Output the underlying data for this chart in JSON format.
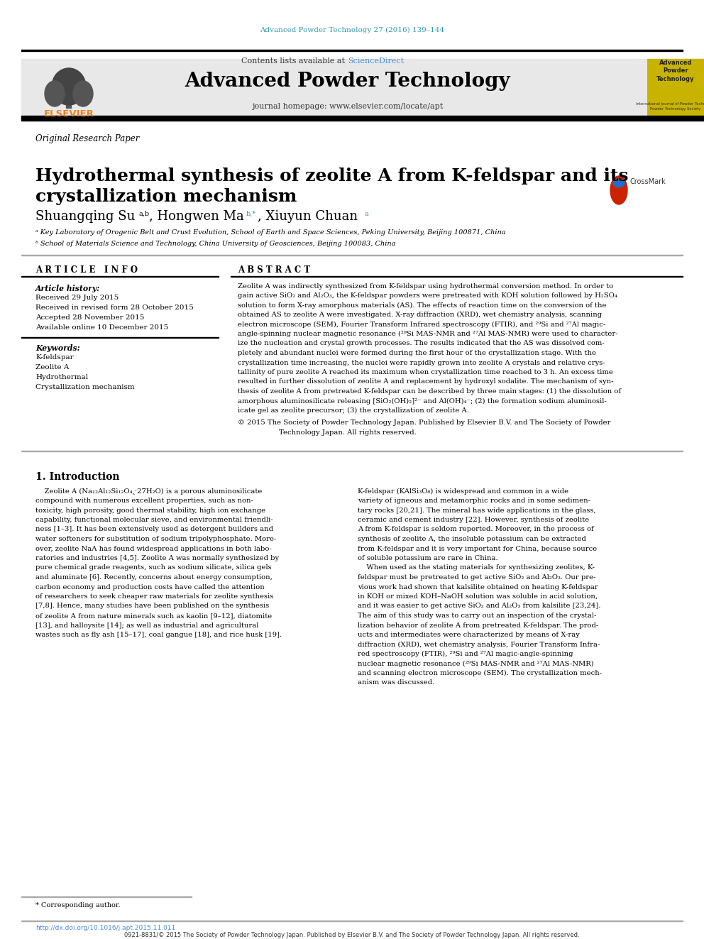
{
  "journal_ref": "Advanced Powder Technology 27 (2016) 139–144",
  "journal_name": "Advanced Powder Technology",
  "contents_line": "Contents lists available at ScienceDirect",
  "journal_homepage": "journal homepage: www.elsevier.com/locate/apt",
  "article_type": "Original Research Paper",
  "title": "Hydrothermal synthesis of zeolite A from K-feldspar and its\ncrystallization mechanism",
  "affil_a": "ᵃ Key Laboratory of Orogenic Belt and Crust Evolution, School of Earth and Space Sciences, Peking University, Beijing 100871, China",
  "affil_b": "ᵇ School of Materials Science and Technology, China University of Geosciences, Beijing 100083, China",
  "article_info_title": "A R T I C L E   I N F O",
  "abstract_title": "A B S T R A C T",
  "article_history_title": "Article history:",
  "received": "Received 29 July 2015",
  "revised": "Received in revised form 28 October 2015",
  "accepted": "Accepted 28 November 2015",
  "available": "Available online 10 December 2015",
  "keywords_title": "Keywords:",
  "keywords": [
    "K-feldspar",
    "Zeolite A",
    "Hydrothermal",
    "Crystallization mechanism"
  ],
  "corresponding_note": "* Corresponding author.",
  "footer_doi": "http://dx.doi.org/10.1016/j.apt.2015.11.011",
  "footer_issn": "0921-8831/© 2015 The Society of Powder Technology Japan. Published by Elsevier B.V. and The Society of Powder Technology Japan. All rights reserved.",
  "color_teal": "#3399AA",
  "color_orange": "#E8821E",
  "color_link": "#4A90D9",
  "color_yellow_bg": "#C8B400"
}
